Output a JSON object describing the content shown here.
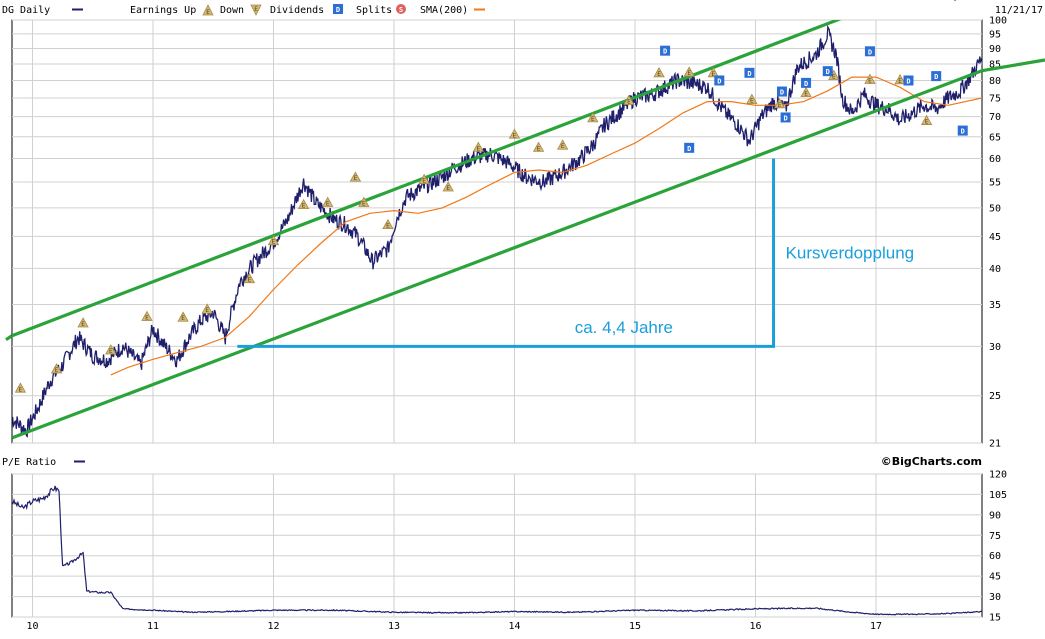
{
  "chart_data": [
    {
      "type": "line",
      "title": "DG Daily",
      "date_label": "11/21/17",
      "y_scale": "log",
      "ylim": [
        21,
        100
      ],
      "y_ticks": [
        21,
        25,
        30,
        35,
        40,
        45,
        50,
        55,
        60,
        65,
        70,
        75,
        80,
        85,
        90,
        95,
        100
      ],
      "x_ticks": [
        "10",
        "11",
        "12",
        "13",
        "14",
        "15",
        "16",
        "17"
      ],
      "grid": true,
      "legend": {
        "placement": "top",
        "series_label": "DG Daily",
        "earnings_label": "Earnings Up",
        "down_label": "Down",
        "dividends_label": "Dividends",
        "splits_label": "Splits",
        "sma_label": "SMA(200)",
        "earnings_symbol": "E",
        "dividend_symbol": "D",
        "split_symbol": "S"
      },
      "series": [
        {
          "name": "DG Daily",
          "color": "#1f1f6b",
          "x": [
            2009.83,
            2009.95,
            2010.05,
            2010.15,
            2010.25,
            2010.38,
            2010.5,
            2010.62,
            2010.75,
            2010.9,
            2011.0,
            2011.1,
            2011.2,
            2011.3,
            2011.4,
            2011.5,
            2011.6,
            2011.72,
            2011.85,
            2012.0,
            2012.12,
            2012.25,
            2012.35,
            2012.5,
            2012.6,
            2012.7,
            2012.82,
            2012.95,
            2013.02,
            2013.1,
            2013.25,
            2013.4,
            2013.5,
            2013.65,
            2013.8,
            2013.95,
            2014.0,
            2014.1,
            2014.25,
            2014.4,
            2014.55,
            2014.65,
            2014.75,
            2014.9,
            2015.0,
            2015.15,
            2015.35,
            2015.5,
            2015.6,
            2015.68,
            2015.75,
            2015.85,
            2015.95,
            2016.05,
            2016.15,
            2016.25,
            2016.35,
            2016.5,
            2016.6,
            2016.67,
            2016.72,
            2016.8,
            2016.9,
            2017.0,
            2017.1,
            2017.2,
            2017.3,
            2017.4,
            2017.5,
            2017.6,
            2017.7,
            2017.8,
            2017.88
          ],
          "values": [
            23,
            22,
            24,
            26.5,
            28,
            31,
            29,
            28.5,
            30,
            28,
            32,
            30,
            28.5,
            31,
            33,
            34,
            31,
            38,
            41,
            44,
            48,
            55,
            51,
            48,
            47,
            45,
            41,
            43,
            48,
            52,
            54,
            56,
            58,
            60,
            61,
            59,
            58,
            56,
            55,
            57,
            60,
            63,
            68,
            72,
            75,
            76,
            80,
            79,
            78,
            74,
            71,
            68,
            64,
            70,
            74,
            72,
            84,
            88,
            95,
            88,
            75,
            71,
            76,
            73,
            72,
            69,
            71,
            73,
            72,
            75,
            77,
            82,
            87
          ]
        },
        {
          "name": "SMA(200)",
          "color": "#f07818",
          "x": [
            2010.65,
            2010.8,
            2011.0,
            2011.2,
            2011.4,
            2011.6,
            2011.8,
            2012.0,
            2012.2,
            2012.4,
            2012.6,
            2012.8,
            2013.0,
            2013.2,
            2013.4,
            2013.6,
            2013.8,
            2014.0,
            2014.2,
            2014.4,
            2014.6,
            2014.8,
            2015.0,
            2015.2,
            2015.4,
            2015.6,
            2015.8,
            2016.0,
            2016.2,
            2016.4,
            2016.6,
            2016.8,
            2017.0,
            2017.2,
            2017.4,
            2017.6,
            2017.88
          ],
          "values": [
            27,
            27.8,
            28.6,
            29.3,
            30,
            31,
            33.5,
            37,
            40.5,
            44,
            47.5,
            49,
            49.5,
            49,
            50,
            52,
            54.5,
            57,
            57.5,
            57,
            58.5,
            61,
            63.5,
            67,
            71,
            74,
            74,
            73,
            73,
            74,
            77,
            81,
            81,
            78,
            74,
            73,
            75
          ]
        }
      ],
      "earnings_markers": [
        {
          "x": 2009.9,
          "y": 25.7
        },
        {
          "x": 2010.2,
          "y": 27.6
        },
        {
          "x": 2010.42,
          "y": 32.7
        },
        {
          "x": 2010.65,
          "y": 29.6
        },
        {
          "x": 2010.95,
          "y": 33.5
        },
        {
          "x": 2011.25,
          "y": 33.4
        },
        {
          "x": 2011.45,
          "y": 34.4
        },
        {
          "x": 2011.8,
          "y": 38.5
        },
        {
          "x": 2012.0,
          "y": 44.3
        },
        {
          "x": 2012.25,
          "y": 50.6
        },
        {
          "x": 2012.45,
          "y": 51
        },
        {
          "x": 2012.68,
          "y": 56
        },
        {
          "x": 2012.75,
          "y": 51
        },
        {
          "x": 2012.95,
          "y": 47
        },
        {
          "x": 2013.25,
          "y": 55.5
        },
        {
          "x": 2013.45,
          "y": 54
        },
        {
          "x": 2013.7,
          "y": 62.5
        },
        {
          "x": 2014.0,
          "y": 65.6
        },
        {
          "x": 2014.2,
          "y": 62.5
        },
        {
          "x": 2014.4,
          "y": 63
        },
        {
          "x": 2014.65,
          "y": 69.7
        },
        {
          "x": 2014.95,
          "y": 74.3
        },
        {
          "x": 2015.2,
          "y": 82.3
        },
        {
          "x": 2015.45,
          "y": 82.5
        },
        {
          "x": 2015.65,
          "y": 82.3
        },
        {
          "x": 2015.97,
          "y": 74.6
        },
        {
          "x": 2016.2,
          "y": 73.4
        },
        {
          "x": 2016.42,
          "y": 76.5
        },
        {
          "x": 2016.65,
          "y": 81.5
        },
        {
          "x": 2016.95,
          "y": 80.3
        },
        {
          "x": 2017.2,
          "y": 80.2
        },
        {
          "x": 2017.42,
          "y": 69
        }
      ],
      "dividend_markers": [
        {
          "x": 2015.25,
          "y": 89.3
        },
        {
          "x": 2015.45,
          "y": 62.4
        },
        {
          "x": 2015.7,
          "y": 80
        },
        {
          "x": 2015.95,
          "y": 82.3
        },
        {
          "x": 2016.22,
          "y": 76.8
        },
        {
          "x": 2016.25,
          "y": 69.8
        },
        {
          "x": 2016.42,
          "y": 79.3
        },
        {
          "x": 2016.6,
          "y": 82.8
        },
        {
          "x": 2016.95,
          "y": 89.1
        },
        {
          "x": 2017.27,
          "y": 80
        },
        {
          "x": 2017.5,
          "y": 81.3
        },
        {
          "x": 2017.72,
          "y": 66.5
        }
      ],
      "trend_lines": [
        {
          "name": "upper-channel",
          "color": "#2aa33a",
          "x": [
            2009.83,
            2017.5
          ],
          "values": [
            31.2,
            115
          ]
        },
        {
          "name": "lower-channel",
          "color": "#2aa33a",
          "x": [
            2009.83,
            2018.13
          ],
          "values": [
            21.4,
            86.5
          ]
        }
      ],
      "annotations": [
        {
          "text": "Kursverdopplung",
          "x": 2016.25,
          "y": 41.5,
          "color": "#1a9fdc"
        },
        {
          "text": "ca. 4,4 Jahre",
          "x": 2014.5,
          "y": 31.5,
          "color": "#1a9fdc"
        }
      ],
      "bracket": {
        "color": "#1a9fdc",
        "x_start": 2011.7,
        "x_end": 2016.15,
        "y_low": 30,
        "y_high": 60
      }
    },
    {
      "type": "line",
      "title": "P/E Ratio",
      "ylim": [
        15,
        120
      ],
      "y_ticks": [
        15,
        30,
        45,
        60,
        75,
        90,
        105,
        120
      ],
      "brand": "©BigCharts.com",
      "grid": true,
      "series": [
        {
          "name": "P/E Ratio",
          "color": "#1f1f6b",
          "x": [
            2009.83,
            2009.92,
            2010.0,
            2010.08,
            2010.14,
            2010.18,
            2010.22,
            2010.25,
            2010.32,
            2010.42,
            2010.45,
            2010.55,
            2010.65,
            2010.75,
            2011.0,
            2011.3,
            2011.6,
            2012.0,
            2012.5,
            2013.0,
            2013.5,
            2014.0,
            2014.5,
            2015.0,
            2015.5,
            2016.0,
            2016.5,
            2016.8,
            2017.0,
            2017.3,
            2017.6,
            2017.88
          ],
          "values": [
            100,
            95,
            100,
            102,
            106,
            110,
            108,
            52,
            55,
            62,
            34,
            33,
            33,
            21,
            20,
            18.5,
            19,
            20,
            20,
            18.5,
            18,
            19,
            18.5,
            20,
            19.5,
            21,
            21.5,
            18.5,
            17,
            17,
            17.5,
            19
          ]
        }
      ]
    }
  ]
}
